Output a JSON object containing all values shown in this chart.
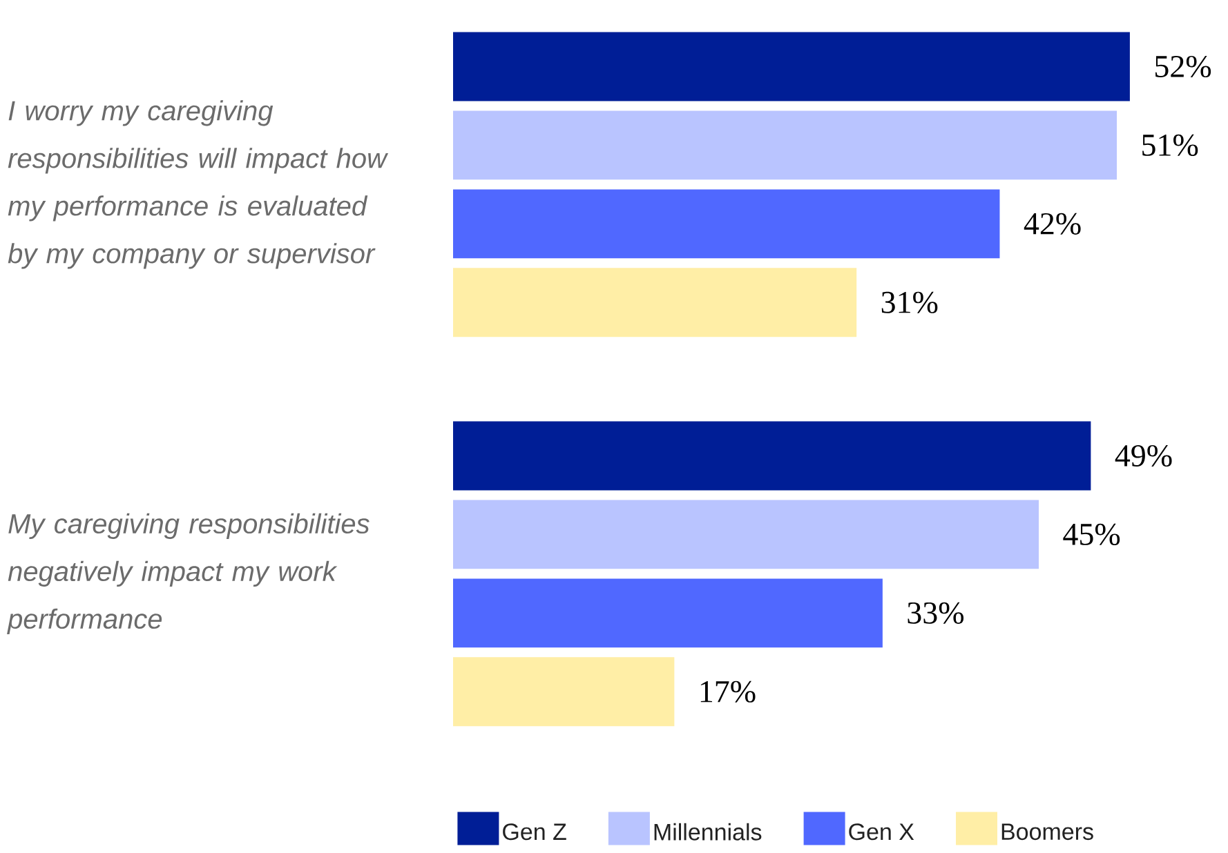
{
  "chart_data": {
    "type": "bar",
    "orientation": "horizontal",
    "legend": "bottom",
    "categories": [
      "I worry my caregiving responsibilities will impact how my performance is evaluated by my company or supervisor",
      "My caregiving responsibilities negatively impact my work performance"
    ],
    "series": [
      {
        "name": "Gen Z",
        "color": "#001e96",
        "values": [
          52,
          49
        ],
        "value_labels": [
          "52%",
          "49%"
        ]
      },
      {
        "name": "Millennials",
        "color": "#b9c4ff",
        "values": [
          51,
          45
        ],
        "value_labels": [
          "51%",
          "45%"
        ]
      },
      {
        "name": "Gen X",
        "color": "#5068ff",
        "values": [
          42,
          33
        ],
        "value_labels": [
          "42%",
          "33%"
        ]
      },
      {
        "name": "Boomers",
        "color": "#ffeea6",
        "values": [
          31,
          17
        ],
        "value_labels": [
          "31%",
          "17%"
        ]
      }
    ]
  }
}
